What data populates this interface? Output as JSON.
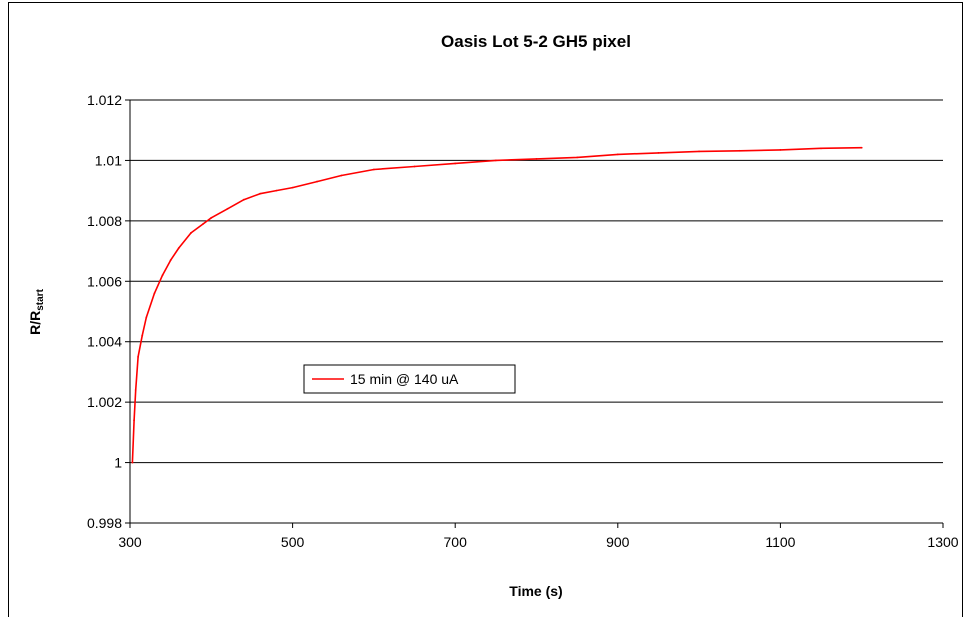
{
  "chart_data": {
    "type": "line",
    "title": "Oasis Lot 5-2 GH5 pixel",
    "xlabel": "Time (s)",
    "ylabel_main": "R/R",
    "ylabel_sub": "start",
    "xlim": [
      300,
      1300
    ],
    "ylim": [
      0.998,
      1.012
    ],
    "x_ticks": [
      300,
      500,
      700,
      900,
      1100,
      1300
    ],
    "x_tick_labels": [
      "300",
      "500",
      "700",
      "900",
      "1100",
      "1300"
    ],
    "y_ticks": [
      0.998,
      1.0,
      1.002,
      1.004,
      1.006,
      1.008,
      1.01,
      1.012
    ],
    "y_tick_labels": [
      "0.998",
      "1",
      "1.002",
      "1.004",
      "1.006",
      "1.008",
      "1.01",
      "1.012"
    ],
    "grid": "horizontal",
    "legend_position": "inside-left",
    "series": [
      {
        "name": "15 min @ 140 uA",
        "color": "#ff0000",
        "x": [
          303,
          305,
          307,
          310,
          315,
          320,
          330,
          340,
          350,
          360,
          375,
          390,
          400,
          420,
          440,
          460,
          480,
          500,
          530,
          560,
          600,
          650,
          700,
          750,
          800,
          850,
          900,
          950,
          1000,
          1050,
          1100,
          1150,
          1200
        ],
        "y": [
          1.0,
          1.0014,
          1.0024,
          1.0035,
          1.0042,
          1.0048,
          1.0056,
          1.0062,
          1.0067,
          1.0071,
          1.0076,
          1.0079,
          1.0081,
          1.0084,
          1.0087,
          1.0089,
          1.009,
          1.0091,
          1.0093,
          1.0095,
          1.0097,
          1.0098,
          1.0099,
          1.01,
          1.01005,
          1.0101,
          1.0102,
          1.01025,
          1.0103,
          1.01032,
          1.01035,
          1.0104,
          1.01042
        ]
      }
    ]
  }
}
